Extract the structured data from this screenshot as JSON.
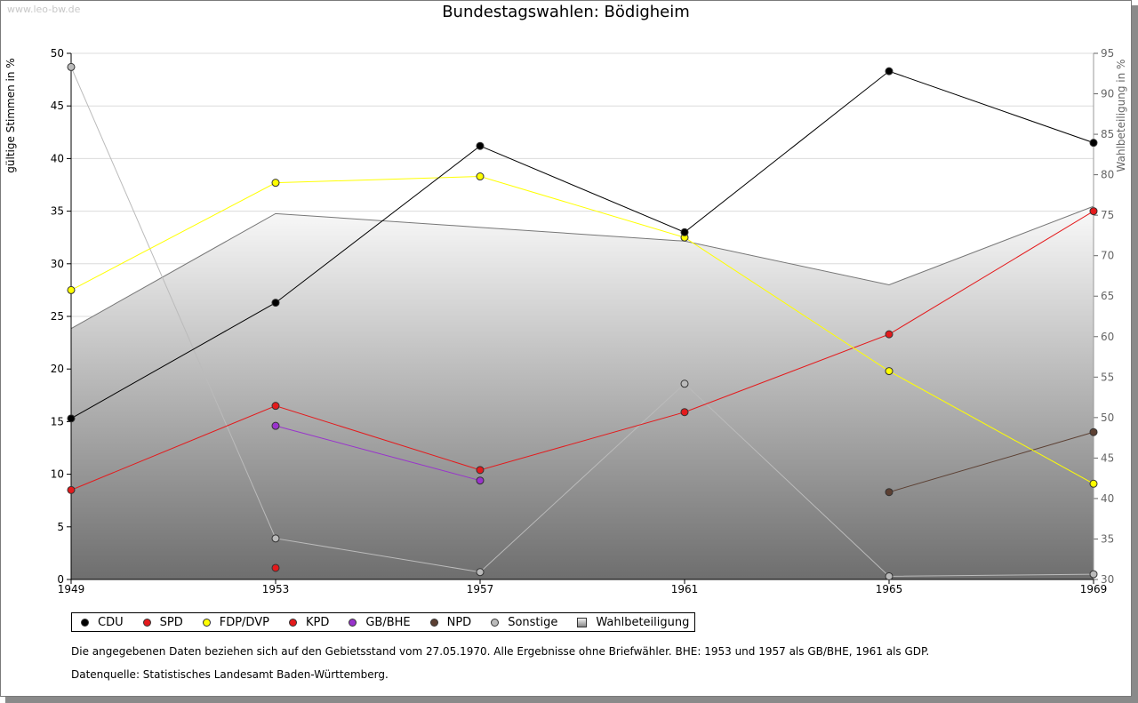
{
  "watermark": "www.leo-bw.de",
  "chart_data": {
    "type": "line",
    "title": "Bundestagswahlen: Bödigheim",
    "ylabel": "gültige Stimmen in %",
    "ylabel_right": "Wahlbeteiligung in %",
    "ylim": [
      0,
      50
    ],
    "ylim_right": [
      30,
      95
    ],
    "yticks": [
      "0",
      "5",
      "10",
      "15",
      "20",
      "25",
      "30",
      "35",
      "40",
      "45",
      "50"
    ],
    "yticks_right": [
      "30",
      "35",
      "40",
      "45",
      "50",
      "55",
      "60",
      "65",
      "70",
      "75",
      "80",
      "85",
      "90",
      "95"
    ],
    "x": [
      "1949",
      "1953",
      "1957",
      "1961",
      "1965",
      "1969"
    ],
    "grid": true,
    "legend_position": "bottom",
    "series": [
      {
        "name": "CDU",
        "color": "#000000",
        "values": [
          15.3,
          26.3,
          41.2,
          33.0,
          48.3,
          41.5
        ]
      },
      {
        "name": "SPD",
        "color": "#e41a1c",
        "values": [
          8.5,
          16.5,
          10.4,
          15.9,
          23.3,
          35.0
        ]
      },
      {
        "name": "FDP/DVP",
        "color": "#ffff00",
        "values": [
          27.5,
          37.7,
          38.3,
          32.5,
          19.8,
          9.1
        ]
      },
      {
        "name": "KPD",
        "color": "#e41a1c",
        "values": [
          null,
          1.1,
          null,
          null,
          null,
          null
        ]
      },
      {
        "name": "GB/BHE",
        "color": "#9933cc",
        "values": [
          null,
          14.6,
          9.4,
          null,
          null,
          null
        ]
      },
      {
        "name": "NPD",
        "color": "#5c4033",
        "values": [
          null,
          null,
          null,
          null,
          8.3,
          14.0
        ]
      },
      {
        "name": "Sonstige",
        "color": "#bbbbbb",
        "values": [
          48.7,
          3.9,
          0.7,
          18.6,
          0.3,
          0.5
        ]
      },
      {
        "name": "Wahlbeteiligung",
        "color": "#777777",
        "axis": "right",
        "values": [
          61.0,
          75.2,
          73.5,
          71.8,
          66.4,
          76.1
        ]
      }
    ]
  },
  "notes": {
    "line1": "Die angegebenen Daten beziehen sich auf den Gebietsstand vom 27.05.1970. Alle Ergebnisse ohne Briefwähler. BHE: 1953 und 1957 als GB/BHE, 1961 als GDP.",
    "line2": "Datenquelle: Statistisches Landesamt Baden-Württemberg."
  }
}
